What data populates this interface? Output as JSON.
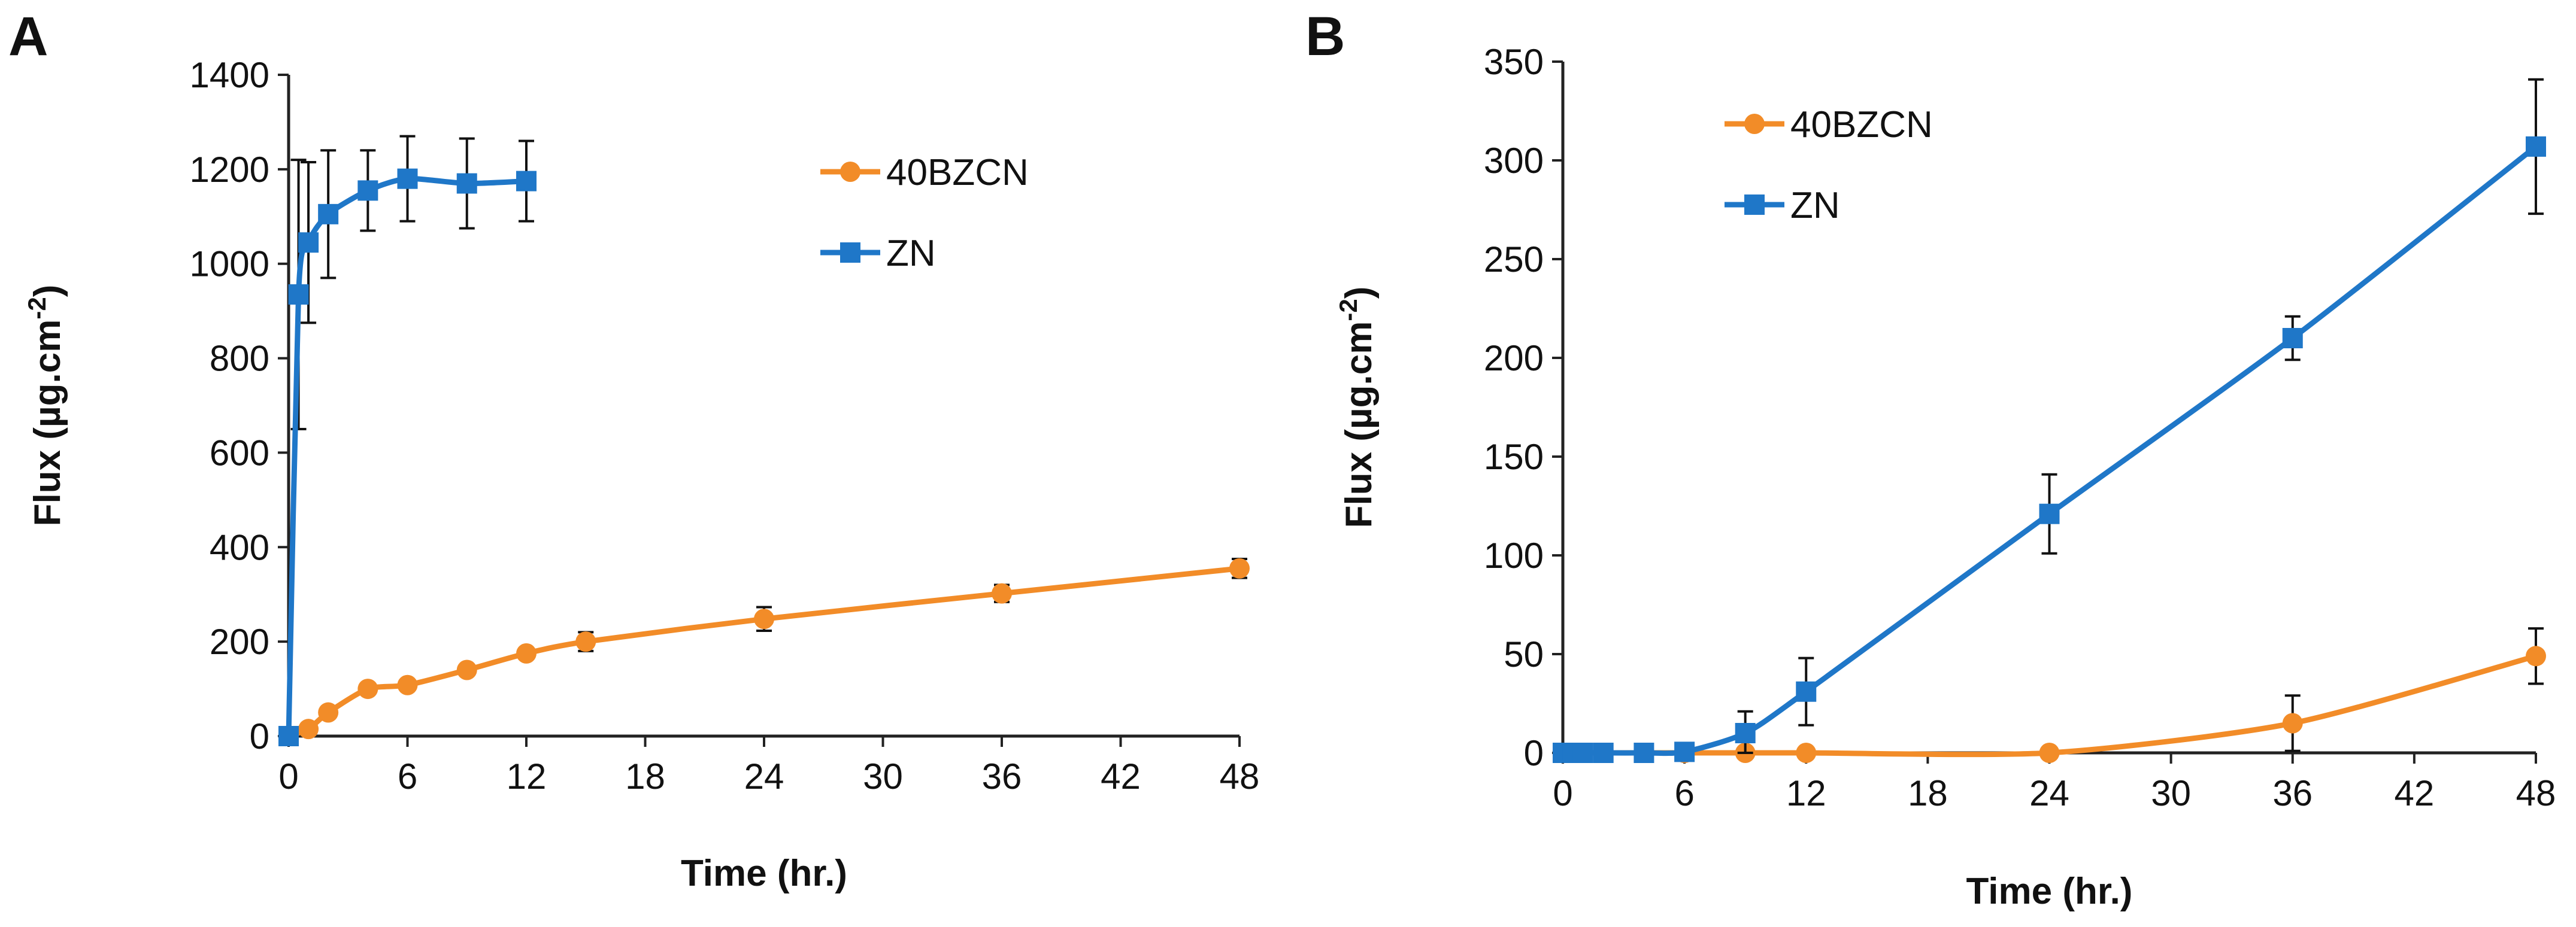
{
  "chart_data": [
    {
      "panel_label": "A",
      "type": "line",
      "xlabel": "Time (hr.)",
      "ylabel": "Flux (µg.cm",
      "ylabel_superscript": "-2",
      "ylabel_close": ")",
      "xlim": [
        0,
        48
      ],
      "ylim": [
        0,
        1400
      ],
      "x_ticks": [
        0,
        6,
        12,
        18,
        24,
        30,
        36,
        42,
        48
      ],
      "y_ticks": [
        0,
        200,
        400,
        600,
        800,
        1000,
        1200,
        1400
      ],
      "grid": false,
      "legend_position": "top-right",
      "series": [
        {
          "name": "40BZCN",
          "color": "#F28C28",
          "marker": "circle",
          "x": [
            0,
            1,
            2,
            4,
            6,
            9,
            12,
            15,
            24,
            36,
            48
          ],
          "y": [
            0,
            15,
            50,
            100,
            108,
            140,
            175,
            200,
            248,
            302,
            355
          ],
          "error": [
            0,
            0,
            0,
            0,
            0,
            0,
            0,
            20,
            25,
            18,
            20
          ]
        },
        {
          "name": "ZN",
          "color": "#1F77C8",
          "marker": "square",
          "x": [
            0,
            0.5,
            1,
            2,
            4,
            6,
            9,
            12
          ],
          "y": [
            0,
            935,
            1045,
            1105,
            1155,
            1180,
            1170,
            1175
          ],
          "error": [
            0,
            285,
            170,
            135,
            85,
            90,
            95,
            85
          ]
        }
      ]
    },
    {
      "panel_label": "B",
      "type": "line",
      "xlabel": "Time (hr.)",
      "ylabel": "Flux (µg.cm",
      "ylabel_superscript": "-2",
      "ylabel_close": ")",
      "xlim": [
        0,
        48
      ],
      "ylim": [
        0,
        350
      ],
      "x_ticks": [
        0,
        6,
        12,
        18,
        24,
        30,
        36,
        42,
        48
      ],
      "y_ticks": [
        0,
        50,
        100,
        150,
        200,
        250,
        300,
        350
      ],
      "grid": false,
      "legend_position": "top-left",
      "series": [
        {
          "name": "40BZCN",
          "color": "#F28C28",
          "marker": "circle",
          "x": [
            0,
            0.5,
            1,
            2,
            4,
            6,
            9,
            12,
            24,
            36,
            48
          ],
          "y": [
            0,
            0,
            0,
            0,
            0,
            0,
            0,
            0,
            0,
            15,
            49
          ],
          "error": [
            0,
            0,
            0,
            0,
            0,
            0,
            0,
            0,
            0,
            14,
            14
          ]
        },
        {
          "name": "ZN",
          "color": "#1F77C8",
          "marker": "square",
          "x": [
            0,
            0.5,
            1,
            2,
            4,
            6,
            9,
            12,
            24,
            36,
            48
          ],
          "y": [
            0,
            0,
            0,
            0,
            0,
            0.5,
            10,
            31,
            121,
            210,
            307
          ],
          "error": [
            0,
            0,
            0,
            0,
            0,
            0,
            11,
            17,
            20,
            11,
            34
          ]
        }
      ]
    }
  ]
}
